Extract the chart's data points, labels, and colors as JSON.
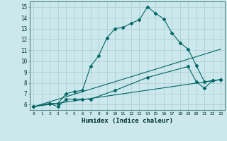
{
  "xlabel": "Humidex (Indice chaleur)",
  "background_color": "#cce8ec",
  "grid_color": "#aacccc",
  "line_color": "#006666",
  "xlim": [
    -0.5,
    23.5
  ],
  "ylim": [
    5.5,
    15.5
  ],
  "yticks": [
    6,
    7,
    8,
    9,
    10,
    11,
    12,
    13,
    14,
    15
  ],
  "xticks": [
    0,
    1,
    2,
    3,
    4,
    5,
    6,
    7,
    8,
    9,
    10,
    11,
    12,
    13,
    14,
    15,
    16,
    17,
    18,
    19,
    20,
    21,
    22,
    23
  ],
  "lines": [
    {
      "x": [
        0,
        2,
        3,
        4,
        5,
        6,
        7,
        8,
        9,
        10,
        11,
        12,
        13,
        14,
        15,
        16,
        17,
        18,
        19,
        20,
        21,
        22,
        23
      ],
      "y": [
        5.8,
        6.1,
        6.1,
        7.0,
        7.2,
        7.3,
        9.5,
        10.5,
        12.1,
        13.0,
        13.1,
        13.5,
        13.8,
        15.0,
        14.4,
        13.9,
        12.6,
        11.7,
        11.1,
        9.6,
        8.1,
        8.2,
        8.3
      ],
      "marker": true
    },
    {
      "x": [
        0,
        2,
        3,
        4,
        5,
        6,
        7,
        10,
        14,
        19,
        20,
        21,
        22,
        23
      ],
      "y": [
        5.8,
        6.1,
        5.8,
        6.5,
        6.5,
        6.5,
        6.5,
        7.3,
        8.5,
        9.5,
        8.1,
        7.5,
        8.2,
        8.3
      ],
      "marker": true
    },
    {
      "x": [
        0,
        23
      ],
      "y": [
        5.8,
        8.3
      ],
      "marker": false
    },
    {
      "x": [
        0,
        23
      ],
      "y": [
        5.8,
        11.1
      ],
      "marker": false
    }
  ]
}
